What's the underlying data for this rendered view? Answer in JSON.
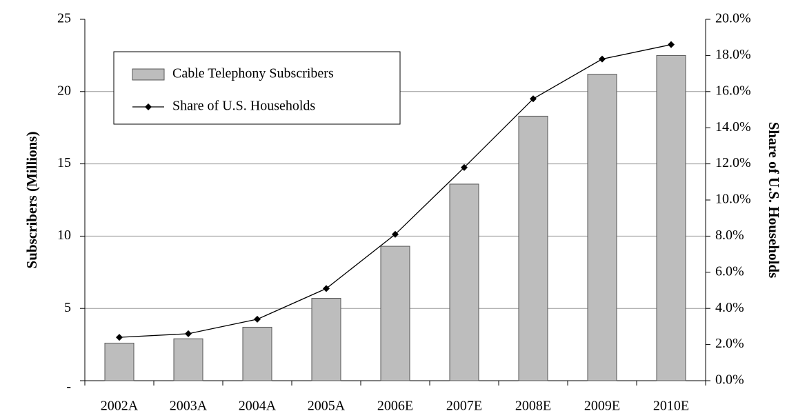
{
  "chart_data": {
    "type": "bar_line",
    "categories": [
      "2002A",
      "2003A",
      "2004A",
      "2005A",
      "2006E",
      "2007E",
      "2008E",
      "2009E",
      "2010E"
    ],
    "series": [
      {
        "name": "Cable Telephony Subscribers",
        "type": "bar",
        "color": "#bdbdbd",
        "values": [
          2.6,
          2.9,
          3.7,
          5.7,
          9.3,
          13.6,
          18.3,
          21.2,
          22.5
        ]
      },
      {
        "name": "Share of U.S. Households",
        "type": "line",
        "axis": "y2",
        "color": "#000000",
        "values": [
          2.4,
          2.6,
          3.4,
          5.1,
          8.1,
          11.8,
          15.6,
          17.8,
          18.6
        ]
      }
    ],
    "ylabel": "Subscribers (Millions)",
    "y2label": "Share of U.S. Households",
    "ylim": [
      0,
      25
    ],
    "yticks": [
      {
        "value": 0,
        "label": "-"
      },
      5,
      10,
      15,
      20,
      25
    ],
    "y2lim": [
      0,
      20
    ],
    "y2ticks": [
      {
        "value": 0,
        "label": "0.0%"
      },
      {
        "value": 2,
        "label": "2.0%"
      },
      {
        "value": 4,
        "label": "4.0%"
      },
      {
        "value": 6,
        "label": "6.0%"
      },
      {
        "value": 8,
        "label": "8.0%"
      },
      {
        "value": 10,
        "label": "10.0%"
      },
      {
        "value": 12,
        "label": "12.0%"
      },
      {
        "value": 14,
        "label": "14.0%"
      },
      {
        "value": 16,
        "label": "16.0%"
      },
      {
        "value": 18,
        "label": "18.0%"
      },
      {
        "value": 20,
        "label": "20.0%"
      }
    ],
    "grid": true,
    "legend": "upper left"
  }
}
